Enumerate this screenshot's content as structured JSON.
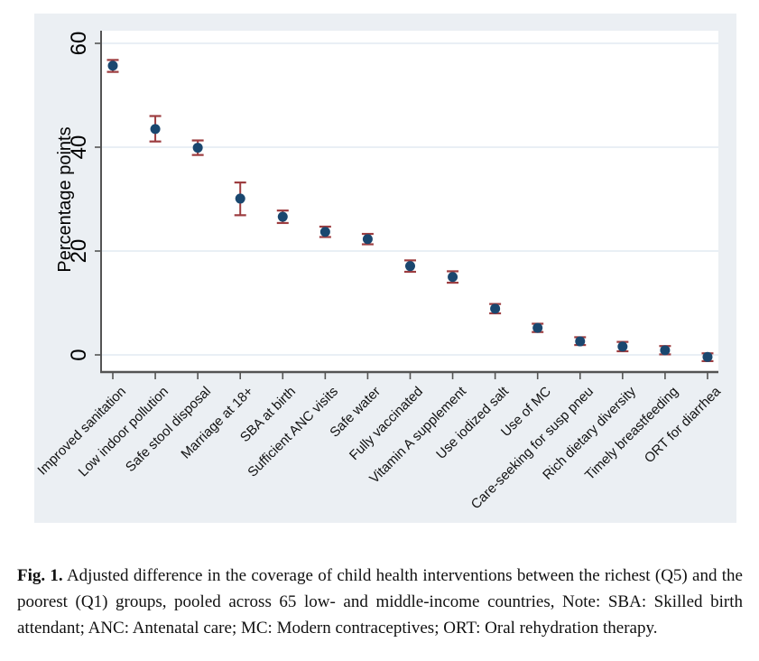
{
  "figure": {
    "caption_label": "Fig. 1.",
    "caption_text": "Adjusted difference in the coverage of child health interventions between the richest (Q5) and the poorest (Q1) groups, pooled across 65 low- and middle-income countries, Note: SBA: Skilled birth attendant; ANC: Antenatal care; MC: Modern contraceptives; ORT: Oral rehydration therapy."
  },
  "chart_data": {
    "type": "scatter",
    "subtype": "point-estimates-with-error-bars",
    "title": "",
    "xlabel": "",
    "ylabel": "Percentage points",
    "yticks": [
      0,
      20,
      40,
      60
    ],
    "ylim": [
      -3.3,
      62.4
    ],
    "grid": true,
    "legend": "none",
    "categories": [
      "Improved sanitation",
      "Low indoor pollution",
      "Safe stool disposal",
      "Marriage at 18+",
      "SBA at birth",
      "Sufficient ANC visits",
      "Safe water",
      "Fully vaccinated",
      "Vitamin A supplement",
      "Use iodized salt",
      "Use of MC",
      "Care-seeking for susp pneu",
      "Rich dietary diversity",
      "Timely breastfeeding",
      "ORT for diarrhea"
    ],
    "values": [
      55.7,
      43.5,
      39.9,
      30.1,
      26.6,
      23.7,
      22.3,
      17.1,
      15.0,
      8.9,
      5.2,
      2.6,
      1.6,
      0.9,
      -0.4
    ],
    "ci_low": [
      54.5,
      41.1,
      38.5,
      26.9,
      25.4,
      22.7,
      21.3,
      16.0,
      13.9,
      8.0,
      4.4,
      1.9,
      0.7,
      0.1,
      -1.2
    ],
    "ci_high": [
      56.8,
      46.0,
      41.3,
      33.2,
      27.8,
      24.7,
      23.3,
      18.2,
      16.1,
      9.8,
      6.0,
      3.4,
      2.5,
      1.7,
      0.3
    ],
    "colors": {
      "marker": "#1a476f",
      "error_bar": "#9d3d40",
      "figure_background": "#ebeff3",
      "plot_background": "#ffffff",
      "gridline": "#e2eaf2",
      "axis": "#545454"
    }
  }
}
